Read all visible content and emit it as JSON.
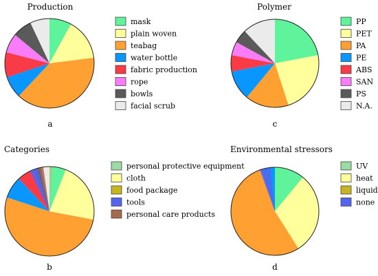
{
  "colors": {
    "mint": "#5ff39b",
    "lightyellow": "#ffff9c",
    "orange": "#ffa033",
    "blue": "#0a96ff",
    "red": "#f83b47",
    "pink": "#fa7cf8",
    "darkgray": "#5a5a5a",
    "lightgray": "#ebebeb",
    "olive": "#c7b422",
    "brown": "#a86a4c",
    "slateblue": "#5566ee",
    "tan": "#c2b77e",
    "lightgreen": "#9bdba4"
  },
  "chart_data": [
    {
      "type": "pie",
      "title": "Production",
      "panel_label": "a",
      "legend_position": "right",
      "series": [
        {
          "name": "mask",
          "value": 8,
          "color": "#5ff39b"
        },
        {
          "name": "plain woven",
          "value": 15,
          "color": "#ffff9c"
        },
        {
          "name": "teabag",
          "value": 39,
          "color": "#ffa033"
        },
        {
          "name": "water bottle",
          "value": 8,
          "color": "#0a96ff"
        },
        {
          "name": "fabric production",
          "value": 9,
          "color": "#f83b47"
        },
        {
          "name": "rope",
          "value": 7,
          "color": "#fa7cf8"
        },
        {
          "name": "bowls",
          "value": 7,
          "color": "#5a5a5a"
        },
        {
          "name": "facial scrub",
          "value": 7,
          "color": "#ebebeb"
        }
      ]
    },
    {
      "type": "pie",
      "title": "Polymer",
      "panel_label": "c",
      "legend_position": "right",
      "series": [
        {
          "name": "PP",
          "value": 22,
          "color": "#5ff39b"
        },
        {
          "name": "PET",
          "value": 23,
          "color": "#ffff9c"
        },
        {
          "name": "PA",
          "value": 16,
          "color": "#ffa033"
        },
        {
          "name": "PE",
          "value": 11,
          "color": "#0a96ff"
        },
        {
          "name": "ABS",
          "value": 6,
          "color": "#f83b47"
        },
        {
          "name": "SAN",
          "value": 5,
          "color": "#fa7cf8"
        },
        {
          "name": "PS",
          "value": 5,
          "color": "#5a5a5a"
        },
        {
          "name": "N.A.",
          "value": 12,
          "color": "#ebebeb"
        }
      ]
    },
    {
      "type": "pie",
      "title": "Categories",
      "panel_label": "b",
      "legend_position": "right",
      "series": [
        {
          "name": "personal protective equipment",
          "value": 6,
          "color": "#5ff39b"
        },
        {
          "name": "cloth",
          "value": 22,
          "color": "#ffff9c"
        },
        {
          "name": "food package",
          "value": 52,
          "color": "#ffa033"
        },
        {
          "name": "tools",
          "value": 8,
          "color": "#0a96ff"
        },
        {
          "name": "personal care products",
          "value": 6,
          "color": "#f83b47"
        },
        {
          "name": "",
          "value": 3,
          "color": "#5a5a5a"
        },
        {
          "name": "",
          "value": 3,
          "color": "#ebebeb"
        }
      ],
      "legend_swatches": [
        "#9bdba4",
        "#ffff9c",
        "#c7b422",
        "#5566ee",
        "#a86a4c"
      ],
      "overlay_wedges": [
        {
          "from": 0,
          "to": 3,
          "color": "#c2b77e"
        },
        {
          "from": 3,
          "to": 9,
          "color": "#5ff39b"
        },
        {
          "from": 334,
          "to": 345,
          "color": "#5566ee"
        },
        {
          "from": 346,
          "to": 352,
          "color": "#a86a4c"
        }
      ]
    },
    {
      "type": "pie",
      "title": "Environmental stressors",
      "panel_label": "d",
      "legend_position": "right",
      "series": [
        {
          "name": "UV",
          "value": 11,
          "color": "#5ff39b"
        },
        {
          "name": "heat",
          "value": 30,
          "color": "#ffff9c"
        },
        {
          "name": "liquid",
          "value": 54,
          "color": "#ffa033"
        },
        {
          "name": "none",
          "value": 5,
          "color": "#0a96ff"
        }
      ],
      "legend_swatches": [
        "#9bdba4",
        "#ffff9c",
        "#c7b422",
        "#5566ee"
      ],
      "overlay_wedges": [
        {
          "from": 340,
          "to": 354,
          "color": "#5566ee"
        },
        {
          "from": 354,
          "to": 360,
          "color": "#0a96ff"
        }
      ]
    }
  ]
}
